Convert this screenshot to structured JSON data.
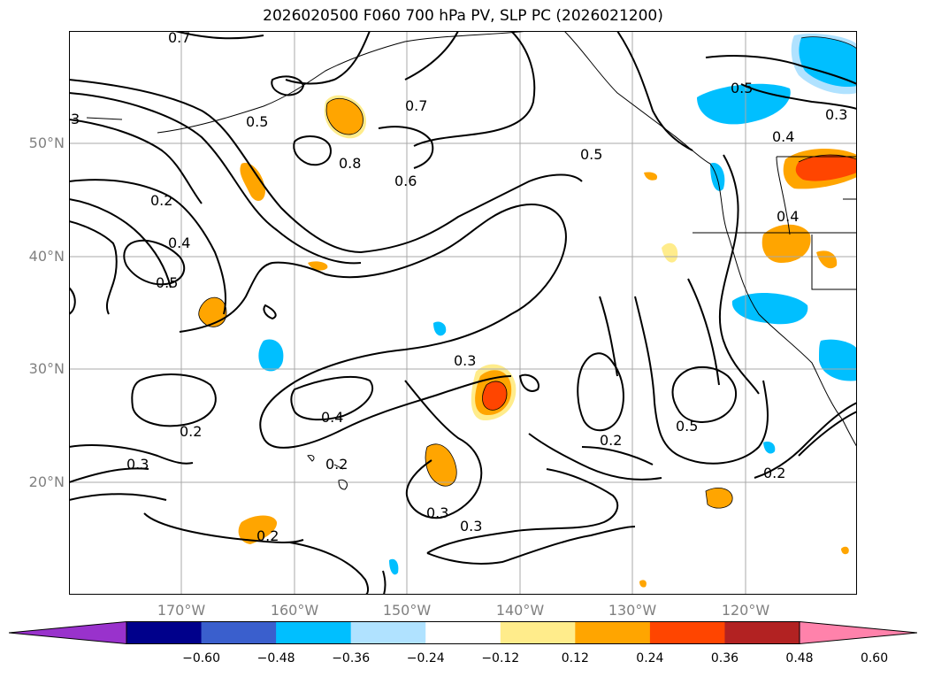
{
  "title": "2026020500 F060 700 hPa PV, SLP PC (2026021200)",
  "lat_labels": [
    "50°N",
    "40°N",
    "30°N",
    "20°N"
  ],
  "lon_labels": [
    "170°W",
    "160°W",
    "150°W",
    "140°W",
    "130°W",
    "120°W"
  ],
  "contour_labels": [
    "0.7",
    "3",
    "0.5",
    "0.8",
    "0.7",
    "0.6",
    "0.5",
    "0.5",
    "0.4",
    "0.3",
    "0.2",
    "0.4",
    "0.5",
    "0.4",
    "0.3",
    "0.4",
    "0.2",
    "0.2",
    "0.3",
    "0.2",
    "0.3",
    "0.3",
    "0.2",
    "0.5",
    "0.2"
  ],
  "colorbar": {
    "ticks": [
      "−0.60",
      "−0.48",
      "−0.36",
      "−0.24",
      "−0.12",
      "0.12",
      "0.24",
      "0.36",
      "0.48",
      "0.60"
    ],
    "colors": [
      "#9932cc",
      "#00008b",
      "#3a5fcd",
      "#00bfff",
      "#b0e2ff",
      "#ffffff",
      "#ffec8b",
      "#ffa500",
      "#ff4500",
      "#b22222",
      "#ff82ab"
    ]
  }
}
